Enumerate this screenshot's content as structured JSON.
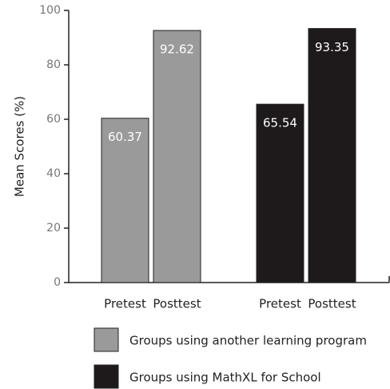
{
  "chart_data": {
    "type": "bar",
    "y_label": "Mean Scores (%)",
    "categories": [
      "Pretest",
      "Posttest"
    ],
    "series": [
      {
        "name": "Groups using another learning program",
        "color": "#9a9a9a",
        "values": [
          60.37,
          92.62
        ]
      },
      {
        "name": "Groups using MathXL for School",
        "color": "#1e1a1b",
        "values": [
          65.54,
          93.35
        ]
      }
    ],
    "ylim": [
      0,
      100
    ],
    "yticks": [
      0,
      20,
      40,
      60,
      80,
      100
    ],
    "grid": false
  }
}
